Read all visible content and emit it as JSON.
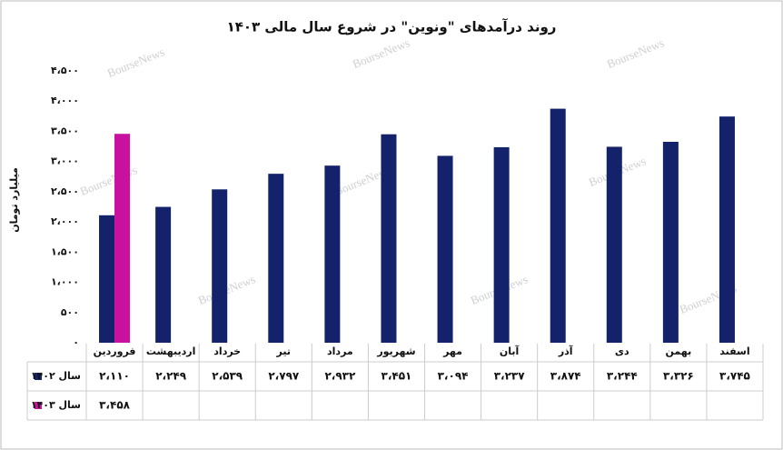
{
  "chart_data": {
    "type": "bar",
    "title": "روند درآمدهای \"ونوین\" در شروع سال مالی ۱۴۰۳",
    "y_label": "میلیارد تومان",
    "watermark": "BourseNews",
    "categories": [
      "فروردین",
      "اردیبهشت",
      "خرداد",
      "تیر",
      "مرداد",
      "شهریور",
      "مهر",
      "آبان",
      "آذر",
      "دی",
      "بهمن",
      "اسفند"
    ],
    "series": [
      {
        "name": "سال ۱۴۰۲",
        "color": "#14216b",
        "values": [
          2110,
          2249,
          2539,
          2797,
          2932,
          3451,
          3094,
          3237,
          3874,
          3244,
          3326,
          3745
        ],
        "value_labels": [
          "۲،۱۱۰",
          "۲،۲۴۹",
          "۲،۵۳۹",
          "۲،۷۹۷",
          "۲،۹۳۲",
          "۳،۴۵۱",
          "۳،۰۹۴",
          "۳،۲۳۷",
          "۳،۸۷۴",
          "۳،۲۴۴",
          "۳،۳۲۶",
          "۳،۷۴۵"
        ]
      },
      {
        "name": "سال ۱۴۰۳",
        "color": "#c8119e",
        "values": [
          3458,
          null,
          null,
          null,
          null,
          null,
          null,
          null,
          null,
          null,
          null,
          null
        ],
        "value_labels": [
          "۳،۴۵۸",
          null,
          null,
          null,
          null,
          null,
          null,
          null,
          null,
          null,
          null,
          null
        ]
      }
    ],
    "ylim": [
      0,
      4500
    ],
    "yticks": [
      {
        "value": 0,
        "label": "۰"
      },
      {
        "value": 500,
        "label": "۵۰۰"
      },
      {
        "value": 1000,
        "label": "۱،۰۰۰"
      },
      {
        "value": 1500,
        "label": "۱،۵۰۰"
      },
      {
        "value": 2000,
        "label": "۲،۰۰۰"
      },
      {
        "value": 2500,
        "label": "۲،۵۰۰"
      },
      {
        "value": 3000,
        "label": "۳،۰۰۰"
      },
      {
        "value": 3500,
        "label": "۳،۵۰۰"
      },
      {
        "value": 4000,
        "label": "۴،۰۰۰"
      },
      {
        "value": 4500,
        "label": "۴،۵۰۰"
      }
    ],
    "grid": false
  }
}
